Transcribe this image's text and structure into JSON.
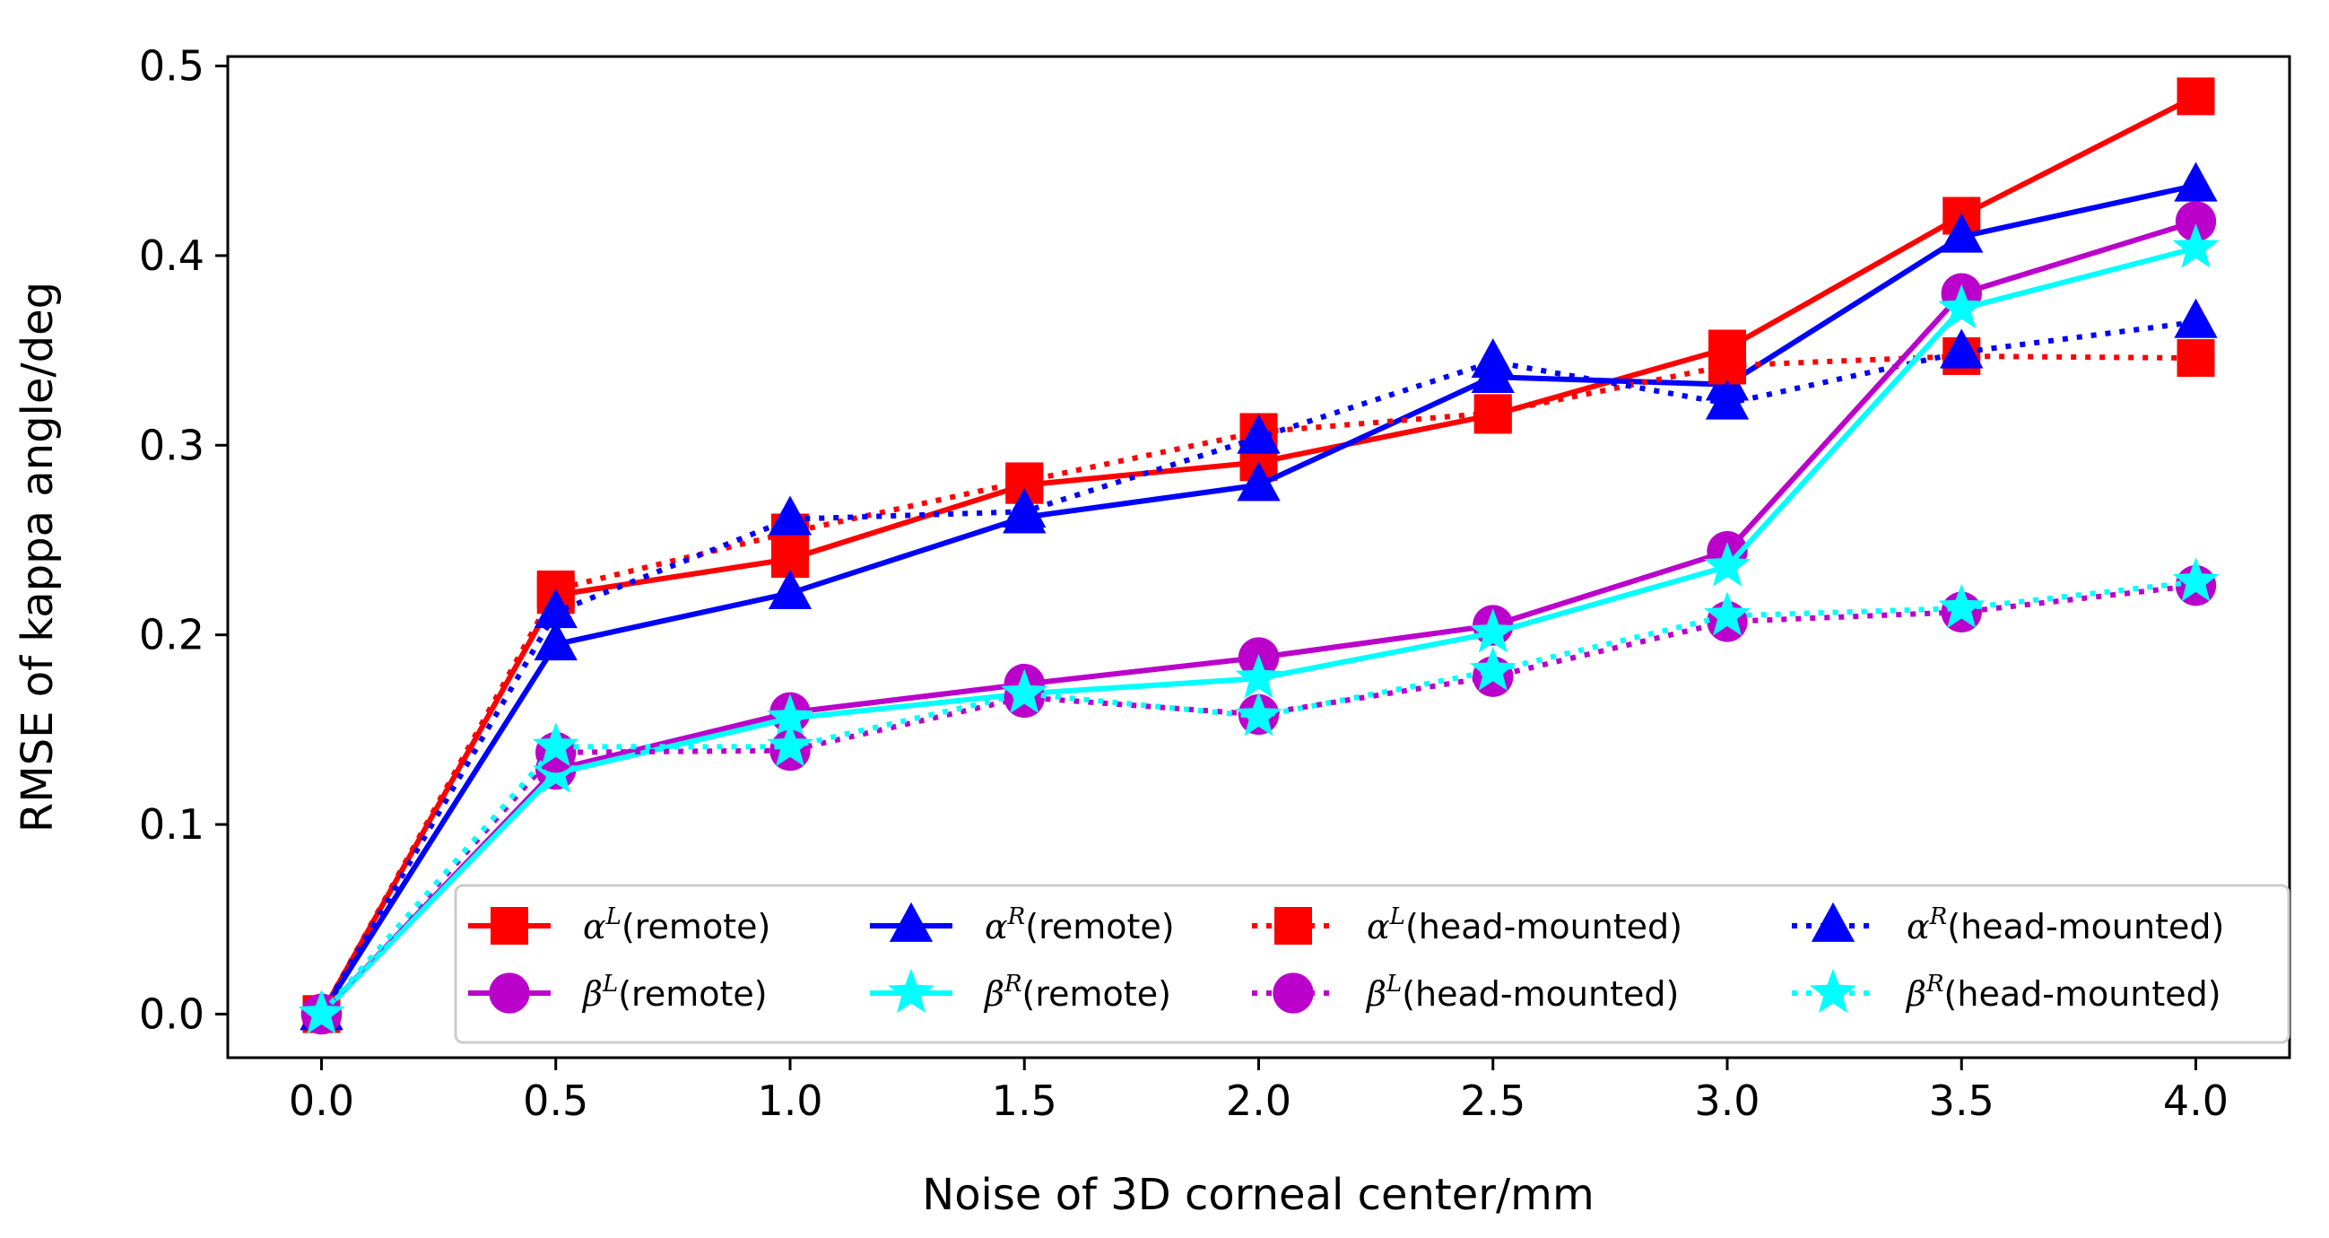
{
  "chart_data": {
    "type": "line",
    "title": "",
    "xlabel": "Noise of 3D corneal center/mm",
    "ylabel": "RMSE of kappa angle/deg",
    "xlim": [
      -0.2,
      4.2
    ],
    "ylim": [
      -0.023,
      0.505
    ],
    "x": [
      0.0,
      0.5,
      1.0,
      1.5,
      2.0,
      2.5,
      3.0,
      3.5,
      4.0
    ],
    "x_ticks": [
      {
        "value": 0.0,
        "label": "0.0"
      },
      {
        "value": 0.5,
        "label": "0.5"
      },
      {
        "value": 1.0,
        "label": "1.0"
      },
      {
        "value": 1.5,
        "label": "1.5"
      },
      {
        "value": 2.0,
        "label": "2.0"
      },
      {
        "value": 2.5,
        "label": "2.5"
      },
      {
        "value": 3.0,
        "label": "3.0"
      },
      {
        "value": 3.5,
        "label": "3.5"
      },
      {
        "value": 4.0,
        "label": "4.0"
      }
    ],
    "y_ticks": [
      {
        "value": 0.0,
        "label": "0.0"
      },
      {
        "value": 0.1,
        "label": "0.1"
      },
      {
        "value": 0.2,
        "label": "0.2"
      },
      {
        "value": 0.3,
        "label": "0.3"
      },
      {
        "value": 0.4,
        "label": "0.4"
      },
      {
        "value": 0.5,
        "label": "0.5"
      }
    ],
    "grid": false,
    "legend_position": "lower-right",
    "series": [
      {
        "greek": "α",
        "sup": "L",
        "suffix": "(remote)",
        "color": "#ff0000",
        "marker": "square",
        "style": "solid",
        "values": [
          0.0,
          0.221,
          0.24,
          0.279,
          0.291,
          0.316,
          0.351,
          0.421,
          0.484
        ]
      },
      {
        "greek": "α",
        "sup": "R",
        "suffix": "(remote)",
        "color": "#0000ff",
        "marker": "triangle",
        "style": "solid",
        "values": [
          0.0,
          0.195,
          0.222,
          0.262,
          0.279,
          0.336,
          0.332,
          0.41,
          0.437
        ]
      },
      {
        "greek": "α",
        "sup": "L",
        "suffix": "(head-mounted)",
        "color": "#ff0000",
        "marker": "square",
        "style": "dotted",
        "values": [
          0.0,
          0.224,
          0.254,
          0.281,
          0.307,
          0.317,
          0.342,
          0.347,
          0.346
        ]
      },
      {
        "greek": "α",
        "sup": "R",
        "suffix": "(head-mounted)",
        "color": "#0000ff",
        "marker": "triangle",
        "style": "dotted",
        "values": [
          0.0,
          0.212,
          0.261,
          0.265,
          0.304,
          0.344,
          0.322,
          0.349,
          0.365
        ]
      },
      {
        "greek": "β",
        "sup": "L",
        "suffix": "(remote)",
        "color": "#bb00cc",
        "marker": "circle",
        "style": "solid",
        "values": [
          0.0,
          0.129,
          0.159,
          0.174,
          0.188,
          0.205,
          0.244,
          0.38,
          0.418
        ]
      },
      {
        "greek": "β",
        "sup": "R",
        "suffix": "(remote)",
        "color": "#00ffff",
        "marker": "star",
        "style": "solid",
        "values": [
          0.0,
          0.127,
          0.156,
          0.169,
          0.177,
          0.201,
          0.236,
          0.372,
          0.404
        ]
      },
      {
        "greek": "β",
        "sup": "L",
        "suffix": "(head-mounted)",
        "color": "#bb00cc",
        "marker": "circle",
        "style": "dotted",
        "values": [
          0.0,
          0.138,
          0.139,
          0.167,
          0.158,
          0.178,
          0.207,
          0.212,
          0.226
        ]
      },
      {
        "greek": "β",
        "sup": "R",
        "suffix": "(head-mounted)",
        "color": "#00ffff",
        "marker": "star",
        "style": "dotted",
        "values": [
          0.0,
          0.141,
          0.141,
          0.169,
          0.157,
          0.181,
          0.21,
          0.214,
          0.228
        ]
      }
    ],
    "legend_order": [
      0,
      1,
      2,
      3,
      4,
      5,
      6,
      7
    ]
  }
}
